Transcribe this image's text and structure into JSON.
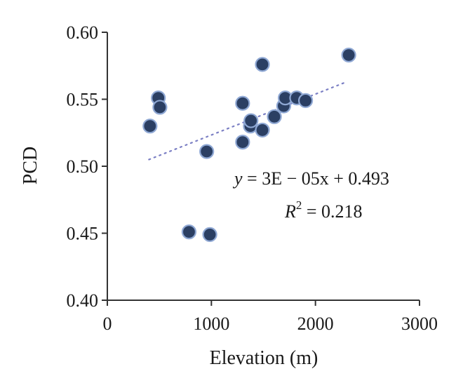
{
  "chart_data": {
    "type": "scatter",
    "xlabel": "Elevation (m)",
    "ylabel": "PCD",
    "xlim": [
      0,
      3000
    ],
    "ylim": [
      0.4,
      0.6
    ],
    "x_ticks": [
      0,
      1000,
      2000,
      3000
    ],
    "x_tick_labels": [
      "0",
      "1000",
      "2000",
      "3000"
    ],
    "y_ticks": [
      0.4,
      0.45,
      0.5,
      0.55,
      0.6
    ],
    "y_tick_labels": [
      "0.40",
      "0.45",
      "0.50",
      "0.55",
      "0.60"
    ],
    "grid": false,
    "legend": "none",
    "marker_color": "#2b3f63",
    "marker_edge_color": "#8fa8d4",
    "trendline_color": "#7b7fc4",
    "points": [
      {
        "x": 410,
        "y": 0.53
      },
      {
        "x": 490,
        "y": 0.551
      },
      {
        "x": 505,
        "y": 0.544
      },
      {
        "x": 785,
        "y": 0.451
      },
      {
        "x": 955,
        "y": 0.511
      },
      {
        "x": 985,
        "y": 0.449
      },
      {
        "x": 1300,
        "y": 0.547
      },
      {
        "x": 1300,
        "y": 0.518
      },
      {
        "x": 1375,
        "y": 0.53
      },
      {
        "x": 1380,
        "y": 0.534
      },
      {
        "x": 1490,
        "y": 0.576
      },
      {
        "x": 1490,
        "y": 0.527
      },
      {
        "x": 1605,
        "y": 0.537
      },
      {
        "x": 1695,
        "y": 0.545
      },
      {
        "x": 1710,
        "y": 0.551
      },
      {
        "x": 1820,
        "y": 0.551
      },
      {
        "x": 1905,
        "y": 0.549
      },
      {
        "x": 2320,
        "y": 0.583
      }
    ],
    "trendline": {
      "type": "linear",
      "x_range": [
        400,
        2300
      ],
      "y_range": [
        0.505,
        0.563
      ]
    },
    "annotations": {
      "equation_y": "y",
      "equation_rest": " = 3E − 05x + 0.493",
      "r2_label": "R",
      "r2_sup": "2",
      "r2_value": " = 0.218"
    }
  }
}
